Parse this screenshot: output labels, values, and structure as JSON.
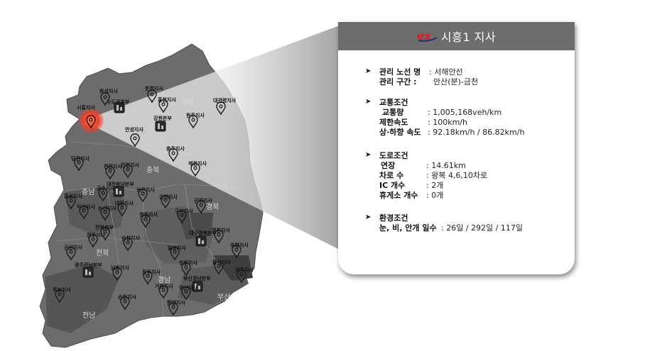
{
  "card": {
    "logo_text": "ex",
    "title": "시흥1 지사",
    "sections": [
      {
        "rows": [
          {
            "key": "관리 노선 명",
            "val": ": 서해안선"
          },
          {
            "key": "관리 구간 :",
            "val": "안산(분)-금천"
          }
        ]
      },
      {
        "heading": "교통조건",
        "rows": [
          {
            "key": "교통량",
            "val": ": 1,005,168veh/km"
          },
          {
            "key": "제한속도",
            "val": ": 100km/h"
          },
          {
            "key": "상·하향 속도",
            "val": ": 92.18km/h / 86.82km/h"
          }
        ]
      },
      {
        "heading": "도로조건",
        "rows": [
          {
            "key": "연장",
            "val": ":  14.61km"
          },
          {
            "key": "차로 수",
            "val": ":  왕복 4,6,10차로"
          },
          {
            "key": "IC 개수",
            "val": ":  2개"
          },
          {
            "key": "휴게소 개수",
            "val": ": 0개"
          }
        ]
      },
      {
        "heading": "환경조건",
        "rows": [
          {
            "key": "눈, 비, 안개 일수",
            "val": ": 26일 / 292일 / 117일"
          }
        ]
      }
    ]
  },
  "map": {
    "regions": [
      "강원",
      "충북",
      "충남",
      "경북",
      "전북",
      "경남",
      "전남",
      "부산"
    ],
    "branches": [
      "화성지사",
      "시흥지사",
      "수도권본부",
      "춘천지사",
      "홍천지사",
      "원주지사",
      "대관령지사",
      "강릉지사",
      "안성지사",
      "강원본부",
      "충주지사",
      "제천지사",
      "당진지사",
      "천안지사",
      "진천지사",
      "보은지사",
      "대전충남본부",
      "홍성지사",
      "공주지사",
      "논산지사",
      "대전지사",
      "영동지사",
      "김천지사",
      "구미지사",
      "군위지사",
      "영천지사",
      "포항지사",
      "경주지사",
      "대구경북본부",
      "전주지사",
      "익산지사",
      "군산지사",
      "전북본부",
      "남원지사",
      "순창지사",
      "광주지사",
      "함평지사",
      "광주전남본부",
      "목포지사",
      "순천지사",
      "진주지사",
      "함양지사",
      "거창지사",
      "창원지사",
      "부산경남본부",
      "양산지사",
      "울산지사",
      "밀양지사"
    ]
  },
  "colors": {
    "header_bg": "#6e6c6c",
    "brand_red": "#d8202a",
    "brand_blue": "#1a2f7a",
    "highlight": "#e8412e"
  },
  "icons": [
    "location-pin-icon",
    "building-icon",
    "bullet-arrow-icon",
    "brand-logo-icon"
  ]
}
